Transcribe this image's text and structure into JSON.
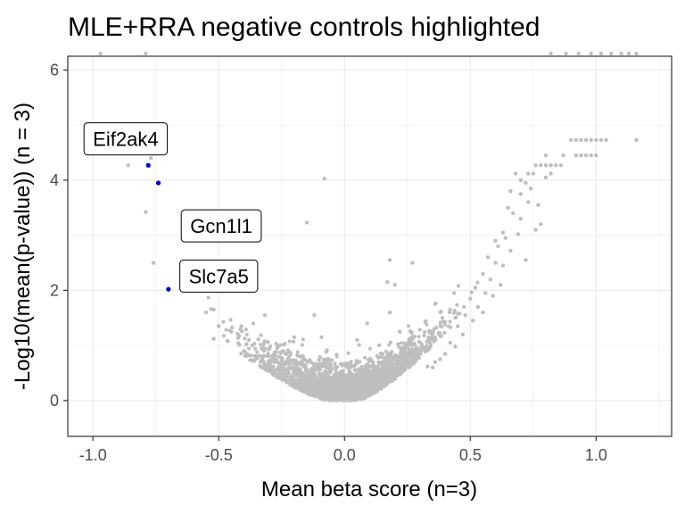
{
  "chart_data": {
    "type": "scatter",
    "title": "MLE+RRA negative controls highlighted",
    "xlabel": "Mean beta score (n=3)",
    "ylabel": "-Log10(mean(p-value)) (n = 3)",
    "xlim": [
      -1.1,
      1.3
    ],
    "ylim": [
      -0.65,
      6.25
    ],
    "x_ticks": [
      -1.0,
      -0.5,
      0.0,
      0.5,
      1.0
    ],
    "x_tick_labels": [
      "-1.0",
      "-0.5",
      "0.0",
      "0.5",
      "1.0"
    ],
    "y_ticks": [
      0,
      2,
      4,
      6
    ],
    "y_tick_labels": [
      "0",
      "2",
      "4",
      "6"
    ],
    "grid": true,
    "colors": {
      "background_points": "#bebebe",
      "highlight": "#0000cd",
      "panel_border": "#333333",
      "grid": "#ebebeb"
    },
    "background_points": [
      {
        "x": -0.97,
        "y": 6.3
      },
      {
        "x": -0.79,
        "y": 6.3
      },
      {
        "x": 0.82,
        "y": 6.3
      },
      {
        "x": 0.88,
        "y": 6.3
      },
      {
        "x": 0.93,
        "y": 6.3
      },
      {
        "x": 0.98,
        "y": 6.3
      },
      {
        "x": 1.02,
        "y": 6.3
      },
      {
        "x": 1.06,
        "y": 6.3
      },
      {
        "x": 1.1,
        "y": 6.3
      },
      {
        "x": 1.13,
        "y": 6.3
      },
      {
        "x": 1.16,
        "y": 6.3
      },
      {
        "x": -0.86,
        "y": 4.27
      },
      {
        "x": -0.77,
        "y": 4.4
      },
      {
        "x": -0.79,
        "y": 3.42
      },
      {
        "x": -0.76,
        "y": 2.5
      },
      {
        "x": -0.55,
        "y": 1.6
      },
      {
        "x": -0.52,
        "y": 1.65
      },
      {
        "x": -0.5,
        "y": 1.35
      },
      {
        "x": -0.52,
        "y": 1.12
      },
      {
        "x": -0.45,
        "y": 1.25
      },
      {
        "x": -0.42,
        "y": 1.18
      },
      {
        "x": -0.41,
        "y": 1.35
      },
      {
        "x": -0.39,
        "y": 1.02
      },
      {
        "x": -0.4,
        "y": 0.9
      },
      {
        "x": -0.38,
        "y": 1.1
      },
      {
        "x": -0.08,
        "y": 4.03
      },
      {
        "x": -0.15,
        "y": 3.23
      },
      {
        "x": 0.18,
        "y": 2.55
      },
      {
        "x": 0.27,
        "y": 2.5
      },
      {
        "x": 0.2,
        "y": 2.1
      },
      {
        "x": 0.17,
        "y": 2.15
      },
      {
        "x": 0.18,
        "y": 1.6
      },
      {
        "x": -0.12,
        "y": 1.55
      },
      {
        "x": 0.09,
        "y": 1.4
      },
      {
        "x": -0.2,
        "y": 1.15
      },
      {
        "x": 0.22,
        "y": 1.25
      },
      {
        "x": 0.05,
        "y": 1.1
      },
      {
        "x": 0.9,
        "y": 4.73
      },
      {
        "x": 0.92,
        "y": 4.73
      },
      {
        "x": 0.94,
        "y": 4.73
      },
      {
        "x": 0.96,
        "y": 4.73
      },
      {
        "x": 0.98,
        "y": 4.73
      },
      {
        "x": 1.0,
        "y": 4.73
      },
      {
        "x": 1.02,
        "y": 4.73
      },
      {
        "x": 1.04,
        "y": 4.73
      },
      {
        "x": 1.16,
        "y": 4.73
      },
      {
        "x": 0.92,
        "y": 4.45
      },
      {
        "x": 0.94,
        "y": 4.45
      },
      {
        "x": 0.96,
        "y": 4.45
      },
      {
        "x": 0.98,
        "y": 4.45
      },
      {
        "x": 1.0,
        "y": 4.45
      },
      {
        "x": 0.87,
        "y": 4.45
      },
      {
        "x": 0.8,
        "y": 4.45
      },
      {
        "x": 0.82,
        "y": 4.27
      },
      {
        "x": 0.76,
        "y": 4.27
      },
      {
        "x": 0.78,
        "y": 4.27
      },
      {
        "x": 0.8,
        "y": 4.27
      },
      {
        "x": 0.84,
        "y": 4.27
      },
      {
        "x": 0.86,
        "y": 4.27
      },
      {
        "x": 0.73,
        "y": 4.12
      },
      {
        "x": 0.75,
        "y": 4.12
      },
      {
        "x": 0.68,
        "y": 4.12
      },
      {
        "x": 0.82,
        "y": 4.12
      },
      {
        "x": 0.8,
        "y": 4.05
      },
      {
        "x": 0.7,
        "y": 4.0
      },
      {
        "x": 0.72,
        "y": 3.95
      },
      {
        "x": 0.66,
        "y": 3.8
      },
      {
        "x": 0.7,
        "y": 3.75
      },
      {
        "x": 0.73,
        "y": 3.6
      },
      {
        "x": 0.65,
        "y": 3.5
      },
      {
        "x": 0.67,
        "y": 3.4
      },
      {
        "x": 0.7,
        "y": 3.3
      },
      {
        "x": 0.63,
        "y": 3.05
      },
      {
        "x": 0.69,
        "y": 3.02
      },
      {
        "x": 0.78,
        "y": 3.2
      },
      {
        "x": 0.76,
        "y": 3.1
      },
      {
        "x": 0.64,
        "y": 2.95
      },
      {
        "x": 0.61,
        "y": 2.8
      },
      {
        "x": 0.66,
        "y": 2.72
      },
      {
        "x": 0.72,
        "y": 2.55
      },
      {
        "x": 0.57,
        "y": 2.6
      },
      {
        "x": 0.6,
        "y": 2.5
      },
      {
        "x": 0.63,
        "y": 2.45
      },
      {
        "x": 0.55,
        "y": 2.3
      },
      {
        "x": 0.58,
        "y": 2.2
      },
      {
        "x": 0.52,
        "y": 2.05
      },
      {
        "x": 0.56,
        "y": 1.95
      },
      {
        "x": 0.5,
        "y": 1.85
      },
      {
        "x": 0.53,
        "y": 1.7
      },
      {
        "x": 0.48,
        "y": 1.55
      },
      {
        "x": 0.51,
        "y": 1.45
      },
      {
        "x": 0.45,
        "y": 1.35
      },
      {
        "x": 0.47,
        "y": 1.2
      },
      {
        "x": 0.42,
        "y": 1.05
      },
      {
        "x": 0.44,
        "y": 0.98
      },
      {
        "x": 0.4,
        "y": 0.85
      },
      {
        "x": 0.38,
        "y": 0.75
      },
      {
        "x": 0.36,
        "y": 0.7
      },
      {
        "x": 0.35,
        "y": 0.6
      },
      {
        "x": 0.33,
        "y": 0.62
      },
      {
        "x": 0.55,
        "y": 1.6
      },
      {
        "x": 0.59,
        "y": 1.9
      },
      {
        "x": 0.62,
        "y": 2.1
      },
      {
        "x": 0.6,
        "y": 2.9
      },
      {
        "x": 0.74,
        "y": 3.85
      },
      {
        "x": 0.77,
        "y": 3.55
      }
    ],
    "highlighted": [
      {
        "name": "Eif2ak4",
        "x": -0.78,
        "y": 4.27
      },
      {
        "name": "Gcn1l1",
        "x": -0.74,
        "y": 3.95
      },
      {
        "name": "Slc7a5",
        "x": -0.7,
        "y": 2.02
      }
    ],
    "label_offsets": [
      {
        "dx": -0.09,
        "dy": 0.48
      },
      {
        "dx": 0.25,
        "dy": -0.78
      },
      {
        "dx": 0.2,
        "dy": 0.24
      }
    ]
  }
}
